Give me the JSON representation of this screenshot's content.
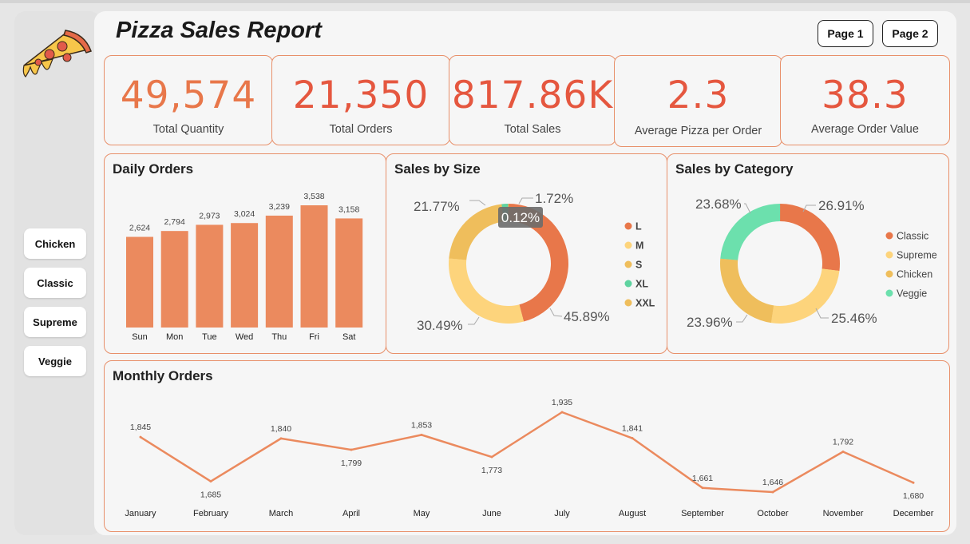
{
  "title": "Pizza Sales Report",
  "pages": [
    "Page 1",
    "Page 2"
  ],
  "filters": [
    "Chicken",
    "Classic",
    "Supreme",
    "Veggie"
  ],
  "kpis": [
    {
      "value": "49,574",
      "label": "Total Quantity"
    },
    {
      "value": "21,350",
      "label": "Total Orders"
    },
    {
      "value": "817.86K",
      "label": "Total Sales"
    },
    {
      "value": "2.3",
      "label": "Average Pizza per Order"
    },
    {
      "value": "38.3",
      "label": "Average Order Value"
    }
  ],
  "colors": {
    "accent": "#e5573f",
    "bar": "#eb8a5e",
    "line": "#eb8a5e",
    "border": "#e8906a"
  },
  "daily_title": "Daily Orders",
  "size_title": "Sales by Size",
  "category_title": "Sales by Category",
  "monthly_title": "Monthly Orders",
  "size_tooltip": "0.12%",
  "chart_data": [
    {
      "type": "bar",
      "title": "Daily Orders",
      "categories": [
        "Sun",
        "Mon",
        "Tue",
        "Wed",
        "Thu",
        "Fri",
        "Sat"
      ],
      "values": [
        2624,
        2794,
        2973,
        3024,
        3239,
        3538,
        3158
      ],
      "labels": [
        "2,624",
        "2,794",
        "2,973",
        "3,024",
        "3,239",
        "3,538",
        "3,158"
      ],
      "ylim": [
        0,
        3538
      ]
    },
    {
      "type": "pie",
      "title": "Sales by Size",
      "categories": [
        "L",
        "M",
        "S",
        "XL",
        "XXL"
      ],
      "values": [
        45.89,
        30.49,
        21.77,
        1.72,
        0.12
      ],
      "labels": [
        "45.89%",
        "30.49%",
        "21.77%",
        "1.72%",
        "0.12%"
      ],
      "colors": [
        "#e8774a",
        "#fdd47c",
        "#efbe5c",
        "#5fd3a0",
        "#efbe5c"
      ]
    },
    {
      "type": "pie",
      "title": "Sales by Category",
      "categories": [
        "Classic",
        "Supreme",
        "Chicken",
        "Veggie"
      ],
      "values": [
        26.91,
        25.46,
        23.96,
        23.68
      ],
      "labels": [
        "26.91%",
        "25.46%",
        "23.96%",
        "23.68%"
      ],
      "colors": [
        "#e8774a",
        "#fdd47c",
        "#efbe5c",
        "#6ce0ad"
      ]
    },
    {
      "type": "line",
      "title": "Monthly Orders",
      "categories": [
        "January",
        "February",
        "March",
        "April",
        "May",
        "June",
        "July",
        "August",
        "September",
        "October",
        "November",
        "December"
      ],
      "values": [
        1845,
        1685,
        1840,
        1799,
        1853,
        1773,
        1935,
        1841,
        1661,
        1646,
        1792,
        1680
      ],
      "labels": [
        "1,845",
        "1,685",
        "1,840",
        "1,799",
        "1,853",
        "1,773",
        "1,935",
        "1,841",
        "1,661",
        "1,646",
        "1,792",
        "1,680"
      ],
      "ylim": [
        1646,
        1935
      ]
    }
  ]
}
